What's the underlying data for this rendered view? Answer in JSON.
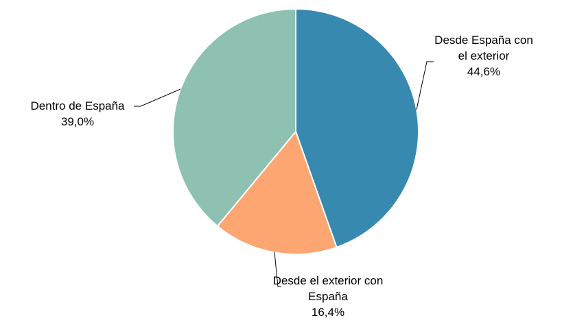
{
  "chart_data": {
    "type": "pie",
    "categories": [
      "Desde España con el exterior",
      "Desde el exterior con España",
      "Dentro de España"
    ],
    "values": [
      44.6,
      16.4,
      39.0
    ],
    "value_labels": [
      "44,6%",
      "16,4%",
      "39,0%"
    ],
    "colors": [
      "#3789b0",
      "#fda672",
      "#8fc1b3"
    ]
  }
}
